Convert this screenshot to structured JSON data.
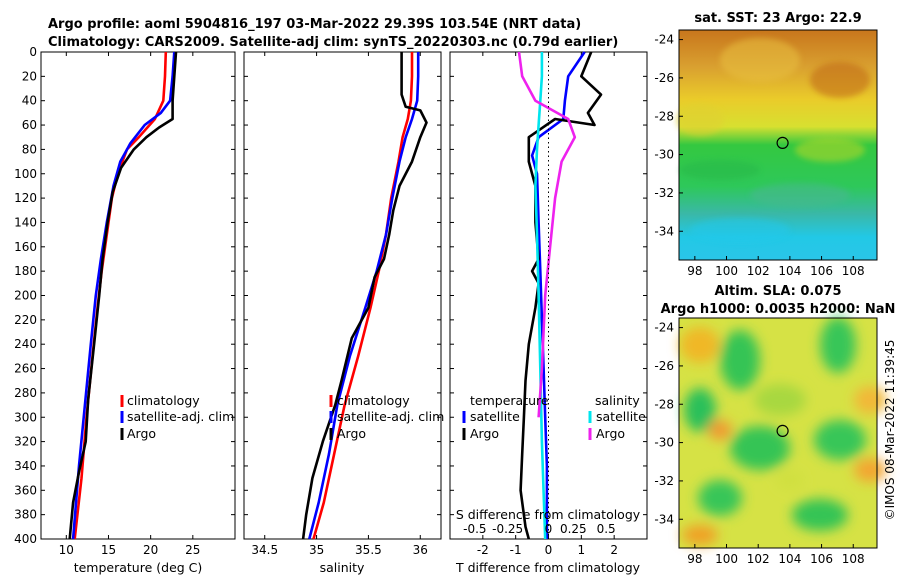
{
  "header": {
    "line1": "Argo profile: aoml 5904816_197 03-Mar-2022 29.39S 103.54E (NRT data)",
    "line2": "Climatology: CARS2009. Satellite-adj clim: synTS_20220303.nc (0.79d earlier)"
  },
  "stamp": "©IMOS 08-Mar-2022 11:39:45",
  "colors": {
    "climatology": "#ff0000",
    "satellite": "#0000ff",
    "argo": "#000000",
    "salinity_sat": "#00e5ee",
    "salinity_argo": "#ee22ee"
  },
  "depth_axis": {
    "min": 0,
    "max": 400,
    "ticks": [
      0,
      20,
      40,
      60,
      80,
      100,
      120,
      140,
      160,
      180,
      200,
      220,
      240,
      260,
      280,
      300,
      320,
      340,
      360,
      380,
      400
    ]
  },
  "chart_data": [
    {
      "type": "line",
      "name": "temperature",
      "xlabel": "temperature (deg C)",
      "ylabel": "depth",
      "xlim": [
        7,
        30
      ],
      "ylim": [
        400,
        0
      ],
      "xticks": [
        {
          "v": 10,
          "label": "10"
        },
        {
          "v": 15,
          "label": "15"
        },
        {
          "v": 20,
          "label": "20"
        },
        {
          "v": 25,
          "label": "25"
        }
      ],
      "legend": [
        "climatology",
        "satellite-adj. clim",
        "Argo"
      ],
      "series": [
        {
          "name": "climatology",
          "color": "#ff0000",
          "points": [
            [
              21.8,
              0
            ],
            [
              21.7,
              20
            ],
            [
              21.5,
              40
            ],
            [
              20.5,
              55
            ],
            [
              18.6,
              70
            ],
            [
              17.2,
              80
            ],
            [
              16.1,
              100
            ],
            [
              15.4,
              120
            ],
            [
              14.8,
              150
            ],
            [
              14.2,
              180
            ],
            [
              13.7,
              210
            ],
            [
              13.1,
              250
            ],
            [
              12.4,
              300
            ],
            [
              11.8,
              350
            ],
            [
              11.0,
              400
            ]
          ]
        },
        {
          "name": "satellite-adj. clim",
          "color": "#0000ff",
          "points": [
            [
              22.8,
              0
            ],
            [
              22.6,
              20
            ],
            [
              22.3,
              40
            ],
            [
              21.2,
              50
            ],
            [
              19.3,
              60
            ],
            [
              17.6,
              75
            ],
            [
              16.4,
              90
            ],
            [
              15.6,
              110
            ],
            [
              14.8,
              140
            ],
            [
              14.1,
              170
            ],
            [
              13.5,
              200
            ],
            [
              12.9,
              240
            ],
            [
              12.2,
              290
            ],
            [
              11.5,
              340
            ],
            [
              10.8,
              400
            ]
          ]
        },
        {
          "name": "Argo",
          "color": "#000000",
          "points": [
            [
              23.0,
              0
            ],
            [
              22.8,
              20
            ],
            [
              22.6,
              40
            ],
            [
              22.6,
              55
            ],
            [
              21.0,
              62
            ],
            [
              19.5,
              70
            ],
            [
              18.0,
              80
            ],
            [
              16.5,
              95
            ],
            [
              15.5,
              115
            ],
            [
              14.9,
              140
            ],
            [
              14.3,
              170
            ],
            [
              13.9,
              200
            ],
            [
              13.3,
              240
            ],
            [
              12.6,
              285
            ],
            [
              12.3,
              320
            ],
            [
              11.5,
              345
            ],
            [
              10.8,
              370
            ],
            [
              10.4,
              400
            ]
          ]
        }
      ]
    },
    {
      "type": "line",
      "name": "salinity",
      "xlabel": "salinity",
      "ylabel": "depth",
      "xlim": [
        34.3,
        36.2
      ],
      "ylim": [
        400,
        0
      ],
      "xticks": [
        {
          "v": 34.5,
          "label": "34.5"
        },
        {
          "v": 35,
          "label": "35"
        },
        {
          "v": 35.5,
          "label": "35.5"
        },
        {
          "v": 36,
          "label": "36"
        }
      ],
      "legend": [
        "climatology",
        "satellite-adj. clim",
        "Argo"
      ],
      "series": [
        {
          "name": "climatology",
          "color": "#ff0000",
          "points": [
            [
              35.92,
              0
            ],
            [
              35.92,
              20
            ],
            [
              35.91,
              40
            ],
            [
              35.88,
              55
            ],
            [
              35.83,
              70
            ],
            [
              35.79,
              90
            ],
            [
              35.72,
              120
            ],
            [
              35.67,
              150
            ],
            [
              35.6,
              180
            ],
            [
              35.52,
              210
            ],
            [
              35.4,
              250
            ],
            [
              35.27,
              290
            ],
            [
              35.17,
              330
            ],
            [
              35.07,
              370
            ],
            [
              34.97,
              400
            ]
          ]
        },
        {
          "name": "satellite-adj. clim",
          "color": "#0000ff",
          "points": [
            [
              35.98,
              0
            ],
            [
              35.98,
              20
            ],
            [
              35.97,
              40
            ],
            [
              35.92,
              55
            ],
            [
              35.86,
              70
            ],
            [
              35.8,
              90
            ],
            [
              35.73,
              120
            ],
            [
              35.67,
              150
            ],
            [
              35.58,
              180
            ],
            [
              35.47,
              210
            ],
            [
              35.32,
              250
            ],
            [
              35.2,
              290
            ],
            [
              35.12,
              330
            ],
            [
              35.02,
              370
            ],
            [
              34.93,
              400
            ]
          ]
        },
        {
          "name": "Argo",
          "color": "#000000",
          "points": [
            [
              35.82,
              0
            ],
            [
              35.82,
              20
            ],
            [
              35.82,
              35
            ],
            [
              35.86,
              45
            ],
            [
              36.0,
              48
            ],
            [
              36.06,
              58
            ],
            [
              36.0,
              70
            ],
            [
              35.92,
              90
            ],
            [
              35.8,
              110
            ],
            [
              35.74,
              130
            ],
            [
              35.7,
              150
            ],
            [
              35.65,
              170
            ],
            [
              35.56,
              185
            ],
            [
              35.5,
              210
            ],
            [
              35.34,
              235
            ],
            [
              35.24,
              270
            ],
            [
              35.18,
              290
            ],
            [
              35.06,
              320
            ],
            [
              34.96,
              350
            ],
            [
              34.9,
              380
            ],
            [
              34.87,
              400
            ]
          ]
        }
      ]
    },
    {
      "type": "line",
      "name": "difference",
      "xlabel": "T difference from climatology",
      "ylabel": "depth",
      "top_label": "S difference from climatology",
      "xlim": [
        -3,
        3
      ],
      "ylim": [
        400,
        0
      ],
      "xticks": [
        {
          "v": -2,
          "label": "-2"
        },
        {
          "v": -1,
          "label": "-1"
        },
        {
          "v": 0,
          "label": "0"
        },
        {
          "v": 1,
          "label": "1"
        },
        {
          "v": 2,
          "label": "2"
        }
      ],
      "sticks": [
        "-0.5",
        "-0.25",
        "0",
        "0.25",
        "0.5"
      ],
      "legend_headers": [
        "temperature",
        "salinity"
      ],
      "legend": [
        {
          "label": "satellite",
          "color": "#0000ff"
        },
        {
          "label": "Argo",
          "color": "#000000"
        },
        {
          "label": "satellite",
          "color": "#00e5ee"
        },
        {
          "label": "Argo",
          "color": "#ee22ee"
        }
      ],
      "series": [
        {
          "name": "T satellite",
          "color": "#0000ff",
          "points": [
            [
              1.1,
              0
            ],
            [
              0.6,
              20
            ],
            [
              0.5,
              40
            ],
            [
              0.45,
              55
            ],
            [
              -0.3,
              70
            ],
            [
              -0.5,
              85
            ],
            [
              -0.35,
              100
            ],
            [
              -0.3,
              140
            ],
            [
              -0.25,
              180
            ],
            [
              -0.2,
              220
            ],
            [
              -0.15,
              260
            ],
            [
              -0.1,
              300
            ],
            [
              -0.05,
              340
            ],
            [
              -0.05,
              400
            ]
          ]
        },
        {
          "name": "T Argo",
          "color": "#000000",
          "points": [
            [
              1.3,
              0
            ],
            [
              1.0,
              20
            ],
            [
              1.6,
              35
            ],
            [
              1.2,
              50
            ],
            [
              1.4,
              60
            ],
            [
              0.2,
              55
            ],
            [
              -0.6,
              70
            ],
            [
              -0.6,
              90
            ],
            [
              -0.4,
              110
            ],
            [
              -0.4,
              140
            ],
            [
              -0.3,
              170
            ],
            [
              -0.5,
              180
            ],
            [
              -0.3,
              190
            ],
            [
              -0.4,
              210
            ],
            [
              -0.6,
              240
            ],
            [
              -0.7,
              270
            ],
            [
              -0.75,
              300
            ],
            [
              -0.8,
              330
            ],
            [
              -0.85,
              360
            ],
            [
              -0.7,
              390
            ],
            [
              -0.6,
              400
            ]
          ]
        },
        {
          "name": "S satellite",
          "color": "#00e5ee",
          "points": [
            [
              -0.2,
              0
            ],
            [
              -0.2,
              20
            ],
            [
              -0.25,
              40
            ],
            [
              -0.3,
              60
            ],
            [
              -0.35,
              80
            ],
            [
              -0.4,
              110
            ],
            [
              -0.35,
              150
            ],
            [
              -0.3,
              200
            ],
            [
              -0.25,
              260
            ],
            [
              -0.2,
              320
            ],
            [
              -0.1,
              400
            ]
          ]
        },
        {
          "name": "S Argo",
          "color": "#ee22ee",
          "points": [
            [
              -0.9,
              0
            ],
            [
              -0.8,
              20
            ],
            [
              -0.4,
              40
            ],
            [
              0.6,
              55
            ],
            [
              0.8,
              70
            ],
            [
              0.4,
              90
            ],
            [
              0.2,
              120
            ],
            [
              0.05,
              160
            ],
            [
              -0.1,
              200
            ],
            [
              -0.2,
              260
            ],
            [
              -0.3,
              300
            ]
          ]
        }
      ]
    }
  ],
  "maps": [
    {
      "title": "sat. SST: 23 Argo: 22.9",
      "xlim": [
        97,
        109.5
      ],
      "ylim": [
        -35.5,
        -23.5
      ],
      "xticks": [
        "98",
        "100",
        "102",
        "104",
        "106",
        "108"
      ],
      "yticks": [
        "-24",
        "-26",
        "-28",
        "-30",
        "-32",
        "-34"
      ],
      "xtick_vals": [
        98,
        100,
        102,
        104,
        106,
        108
      ],
      "ytick_vals": [
        -24,
        -26,
        -28,
        -30,
        -32,
        -34
      ],
      "marker": {
        "lon": 103.54,
        "lat": -29.39
      }
    },
    {
      "title1": "Altim. SLA: 0.075",
      "title2": "Argo h1000: 0.0035 h2000: NaN",
      "xlim": [
        97,
        109.5
      ],
      "ylim": [
        -35.5,
        -23.5
      ],
      "xticks": [
        "98",
        "100",
        "102",
        "104",
        "106",
        "108"
      ],
      "yticks": [
        "-24",
        "-26",
        "-28",
        "-30",
        "-32",
        "-34"
      ],
      "xtick_vals": [
        98,
        100,
        102,
        104,
        106,
        108
      ],
      "ytick_vals": [
        -24,
        -26,
        -28,
        -30,
        -32,
        -34
      ],
      "marker": {
        "lon": 103.54,
        "lat": -29.39
      }
    }
  ]
}
